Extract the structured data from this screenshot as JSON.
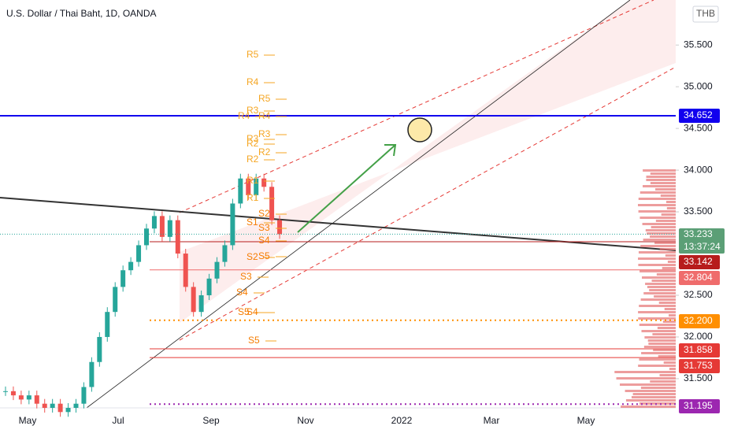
{
  "header": {
    "title": "U.S. Dollar / Thai Baht, 1D, OANDA",
    "currency": "THB"
  },
  "price_axis": {
    "ylim": [
      31.15,
      36.04
    ],
    "ticks": [
      {
        "value": 35.5,
        "label": "35.500"
      },
      {
        "value": 35,
        "label": "35.000"
      },
      {
        "value": 34.5,
        "label": "34.500"
      },
      {
        "value": 34,
        "label": "34.000"
      },
      {
        "value": 33.5,
        "label": "33.500"
      },
      {
        "value": 32.5,
        "label": "32.500"
      },
      {
        "value": 32,
        "label": "32.000"
      },
      {
        "value": 31.5,
        "label": "31.500"
      }
    ]
  },
  "time_axis": [
    "May",
    "Jul",
    "Sep",
    "Nov",
    "2022",
    "Mar",
    "May"
  ],
  "closes": [
    31.35,
    31.3,
    31.25,
    31.3,
    31.2,
    31.15,
    31.2,
    31.1,
    31.15,
    31.2,
    31.4,
    31.7,
    32.0,
    32.3,
    32.6,
    32.8,
    32.9,
    33.1,
    33.3,
    33.45,
    33.2,
    33.4,
    33.0,
    32.6,
    32.3,
    32.5,
    32.7,
    32.9,
    33.1,
    33.6,
    33.9,
    33.7,
    33.9,
    33.8,
    33.4,
    33.233
  ],
  "levels": [
    {
      "value": 34.652,
      "label": "34.652",
      "color": "#1100ee"
    },
    {
      "value": 33.142,
      "label": "33.142",
      "color": "#b71c1c"
    },
    {
      "value": 32.804,
      "label": "32.804",
      "color": "#ef6c6c"
    },
    {
      "value": 32.2,
      "label": "32.200",
      "color": "#ff8f00"
    },
    {
      "value": 31.858,
      "label": "31.858",
      "color": "#e53935"
    },
    {
      "value": 31.753,
      "label": "31.753",
      "color": "#e53935"
    },
    {
      "value": 31.195,
      "label": "31.195",
      "color": "#9c27b0"
    }
  ],
  "last_price": {
    "value": 33.233,
    "label": "33.233",
    "countdown": "13:37:24"
  },
  "pivots": [
    "R5",
    "R4",
    "R5",
    "R3",
    "R4",
    "R3",
    "R4",
    "R2",
    "R3",
    "R2",
    "R1",
    "R2",
    "R1",
    "S1",
    "S2",
    "S3",
    "S4",
    "S5",
    "S2",
    "S3",
    "S4",
    "S5",
    "S4",
    "S5"
  ]
}
